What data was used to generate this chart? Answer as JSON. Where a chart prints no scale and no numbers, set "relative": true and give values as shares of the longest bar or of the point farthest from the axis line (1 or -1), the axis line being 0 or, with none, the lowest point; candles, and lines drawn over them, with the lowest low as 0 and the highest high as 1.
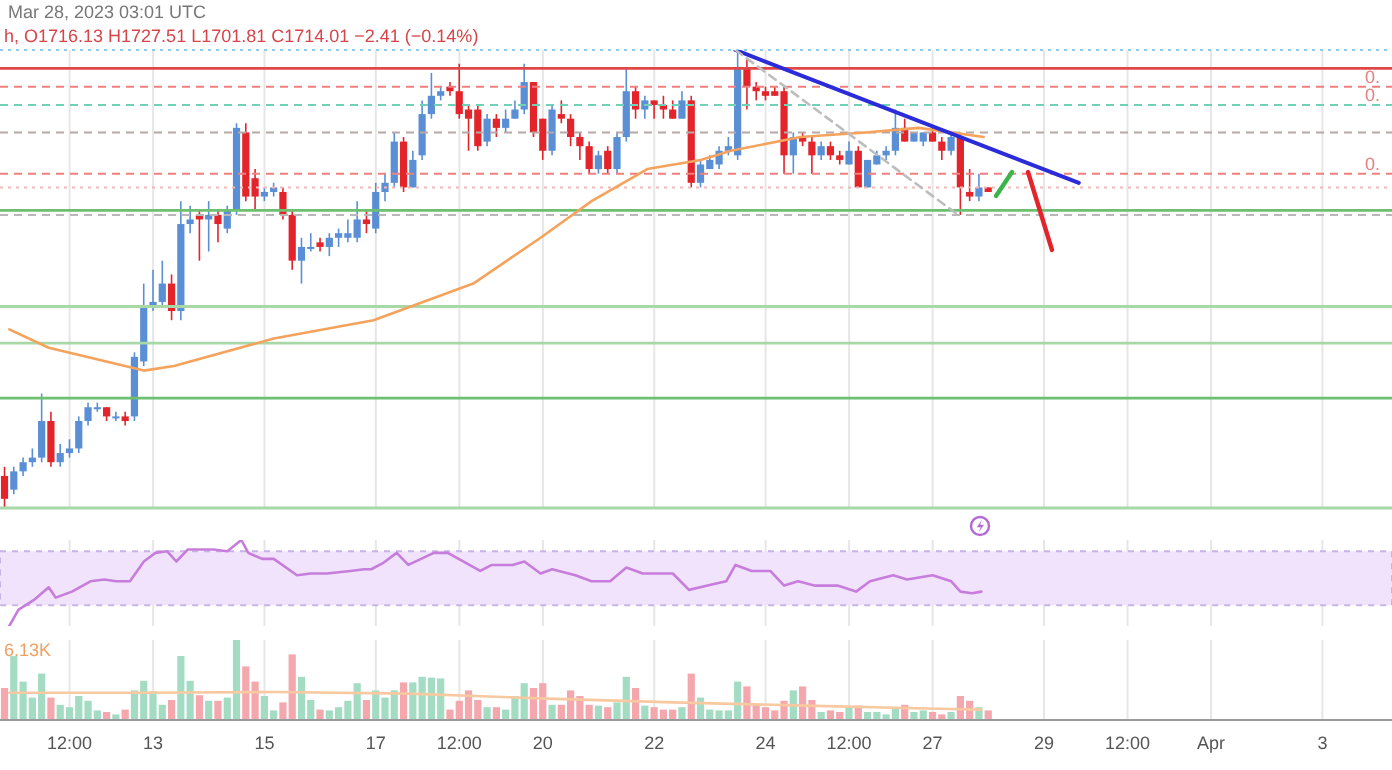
{
  "chart_data": [
    {
      "type": "candlestick",
      "title": "Mar 28, 2023 03:01 UTC",
      "subtitle": "h, O1716.13 H1727.51 L1701.81 C1714.01 −2.41 (−0.14%)",
      "relative": true,
      "marker": "none",
      "grid": "x",
      "tick_labels": false,
      "xlim": [
        "2023-03-10T06:00",
        "2023-04-04T06:00"
      ],
      "x": [
        "2023-03-10T08:00",
        "2023-03-10T12:00",
        "2023-03-10T16:00",
        "2023-03-10T20:00",
        "2023-03-11T00:00",
        "2023-03-11T04:00",
        "2023-03-11T08:00",
        "2023-03-11T12:00",
        "2023-03-11T16:00",
        "2023-03-11T20:00",
        "2023-03-12T00:00",
        "2023-03-12T04:00",
        "2023-03-12T08:00",
        "2023-03-12T12:00",
        "2023-03-12T16:00",
        "2023-03-12T20:00",
        "2023-03-13T00:00",
        "2023-03-13T04:00",
        "2023-03-13T08:00",
        "2023-03-13T12:00",
        "2023-03-13T16:00",
        "2023-03-13T20:00",
        "2023-03-14T00:00",
        "2023-03-14T04:00",
        "2023-03-14T08:00",
        "2023-03-14T12:00",
        "2023-03-14T16:00",
        "2023-03-14T20:00",
        "2023-03-15T00:00",
        "2023-03-15T04:00",
        "2023-03-15T08:00",
        "2023-03-15T12:00",
        "2023-03-15T16:00",
        "2023-03-15T20:00",
        "2023-03-16T00:00",
        "2023-03-16T04:00",
        "2023-03-16T08:00",
        "2023-03-16T12:00",
        "2023-03-16T16:00",
        "2023-03-16T20:00",
        "2023-03-17T00:00",
        "2023-03-17T04:00",
        "2023-03-17T08:00",
        "2023-03-17T12:00",
        "2023-03-17T16:00",
        "2023-03-17T20:00",
        "2023-03-18T00:00",
        "2023-03-18T04:00",
        "2023-03-18T08:00",
        "2023-03-18T12:00",
        "2023-03-18T16:00",
        "2023-03-18T20:00",
        "2023-03-19T00:00",
        "2023-03-19T04:00",
        "2023-03-19T08:00",
        "2023-03-19T12:00",
        "2023-03-19T16:00",
        "2023-03-19T20:00",
        "2023-03-20T00:00",
        "2023-03-20T04:00",
        "2023-03-20T08:00",
        "2023-03-20T12:00",
        "2023-03-20T16:00",
        "2023-03-20T20:00",
        "2023-03-21T00:00",
        "2023-03-21T04:00",
        "2023-03-21T08:00",
        "2023-03-21T12:00",
        "2023-03-21T16:00",
        "2023-03-21T20:00",
        "2023-03-22T00:00",
        "2023-03-22T04:00",
        "2023-03-22T08:00",
        "2023-03-22T12:00",
        "2023-03-22T16:00",
        "2023-03-22T20:00",
        "2023-03-23T00:00",
        "2023-03-23T04:00",
        "2023-03-23T08:00",
        "2023-03-23T12:00",
        "2023-03-23T16:00",
        "2023-03-23T20:00",
        "2023-03-24T00:00",
        "2023-03-24T04:00",
        "2023-03-24T08:00",
        "2023-03-24T12:00",
        "2023-03-24T16:00",
        "2023-03-24T20:00",
        "2023-03-25T00:00",
        "2023-03-25T04:00",
        "2023-03-25T08:00",
        "2023-03-25T12:00",
        "2023-03-25T16:00",
        "2023-03-25T20:00",
        "2023-03-26T00:00",
        "2023-03-26T04:00",
        "2023-03-26T08:00",
        "2023-03-26T12:00",
        "2023-03-26T16:00",
        "2023-03-26T20:00",
        "2023-03-27T00:00",
        "2023-03-27T04:00",
        "2023-03-27T08:00",
        "2023-03-27T12:00",
        "2023-03-27T16:00",
        "2023-03-27T20:00",
        "2023-03-28T00:00"
      ],
      "ohlc": [
        [
          0.07,
          0.09,
          0,
          0.02
        ],
        [
          0.04,
          0.09,
          0.03,
          0.08
        ],
        [
          0.08,
          0.11,
          0.07,
          0.1
        ],
        [
          0.1,
          0.13,
          0.09,
          0.11
        ],
        [
          0.11,
          0.25,
          0.1,
          0.19
        ],
        [
          0.19,
          0.21,
          0.09,
          0.1
        ],
        [
          0.1,
          0.14,
          0.09,
          0.12
        ],
        [
          0.12,
          0.15,
          0.11,
          0.13
        ],
        [
          0.13,
          0.2,
          0.12,
          0.19
        ],
        [
          0.19,
          0.23,
          0.18,
          0.22
        ],
        [
          0.22,
          0.23,
          0.21,
          0.22
        ],
        [
          0.22,
          0.22,
          0.19,
          0.2
        ],
        [
          0.2,
          0.21,
          0.19,
          0.2
        ],
        [
          0.2,
          0.21,
          0.18,
          0.19
        ],
        [
          0.2,
          0.34,
          0.19,
          0.33
        ],
        [
          0.32,
          0.49,
          0.31,
          0.44
        ],
        [
          0.44,
          0.52,
          0.43,
          0.45
        ],
        [
          0.45,
          0.54,
          0.44,
          0.49
        ],
        [
          0.49,
          0.51,
          0.41,
          0.43
        ],
        [
          0.43,
          0.67,
          0.41,
          0.62
        ],
        [
          0.62,
          0.66,
          0.6,
          0.63
        ],
        [
          0.64,
          0.65,
          0.54,
          0.63
        ],
        [
          0.63,
          0.67,
          0.56,
          0.64
        ],
        [
          0.64,
          0.65,
          0.58,
          0.62
        ],
        [
          0.61,
          0.66,
          0.6,
          0.65
        ],
        [
          0.65,
          0.84,
          0.64,
          0.83
        ],
        [
          0.82,
          0.84,
          0.67,
          0.68
        ],
        [
          0.72,
          0.74,
          0.65,
          0.68
        ],
        [
          0.68,
          0.7,
          0.67,
          0.69
        ],
        [
          0.69,
          0.71,
          0.68,
          0.7
        ],
        [
          0.69,
          0.7,
          0.63,
          0.64
        ],
        [
          0.64,
          0.65,
          0.52,
          0.54
        ],
        [
          0.54,
          0.59,
          0.49,
          0.57
        ],
        [
          0.57,
          0.6,
          0.56,
          0.57
        ],
        [
          0.58,
          0.59,
          0.56,
          0.57
        ],
        [
          0.57,
          0.6,
          0.55,
          0.59
        ],
        [
          0.59,
          0.61,
          0.57,
          0.6
        ],
        [
          0.59,
          0.63,
          0.58,
          0.6
        ],
        [
          0.59,
          0.67,
          0.58,
          0.63
        ],
        [
          0.63,
          0.65,
          0.6,
          0.62
        ],
        [
          0.61,
          0.71,
          0.6,
          0.69
        ],
        [
          0.69,
          0.73,
          0.67,
          0.71
        ],
        [
          0.71,
          0.82,
          0.7,
          0.8
        ],
        [
          0.8,
          0.81,
          0.69,
          0.7
        ],
        [
          0.7,
          0.78,
          0.7,
          0.76
        ],
        [
          0.77,
          0.89,
          0.76,
          0.86
        ],
        [
          0.86,
          0.95,
          0.85,
          0.9
        ],
        [
          0.9,
          0.92,
          0.89,
          0.91
        ],
        [
          0.92,
          0.93,
          0.9,
          0.91
        ],
        [
          0.91,
          0.97,
          0.85,
          0.86
        ],
        [
          0.87,
          0.88,
          0.78,
          0.85
        ],
        [
          0.87,
          0.88,
          0.78,
          0.79
        ],
        [
          0.8,
          0.86,
          0.79,
          0.85
        ],
        [
          0.85,
          0.86,
          0.81,
          0.83
        ],
        [
          0.83,
          0.87,
          0.82,
          0.85
        ],
        [
          0.85,
          0.89,
          0.85,
          0.87
        ],
        [
          0.87,
          0.97,
          0.86,
          0.93
        ],
        [
          0.93,
          0.93,
          0.81,
          0.82
        ],
        [
          0.85,
          0.85,
          0.76,
          0.78
        ],
        [
          0.78,
          0.88,
          0.77,
          0.87
        ],
        [
          0.86,
          0.89,
          0.84,
          0.85
        ],
        [
          0.85,
          0.86,
          0.79,
          0.81
        ],
        [
          0.81,
          0.82,
          0.76,
          0.79
        ],
        [
          0.79,
          0.8,
          0.73,
          0.74
        ],
        [
          0.74,
          0.78,
          0.73,
          0.77
        ],
        [
          0.78,
          0.79,
          0.73,
          0.74
        ],
        [
          0.74,
          0.82,
          0.73,
          0.81
        ],
        [
          0.81,
          0.96,
          0.8,
          0.91
        ],
        [
          0.91,
          0.92,
          0.85,
          0.87
        ],
        [
          0.87,
          0.9,
          0.85,
          0.89
        ],
        [
          0.89,
          0.89,
          0.85,
          0.88
        ],
        [
          0.88,
          0.9,
          0.85,
          0.87
        ],
        [
          0.87,
          0.89,
          0.85,
          0.85
        ],
        [
          0.85,
          0.91,
          0.85,
          0.89
        ],
        [
          0.89,
          0.9,
          0.7,
          0.71
        ],
        [
          0.71,
          0.76,
          0.7,
          0.75
        ],
        [
          0.74,
          0.77,
          0.74,
          0.76
        ],
        [
          0.75,
          0.79,
          0.74,
          0.78
        ],
        [
          0.78,
          0.81,
          0.77,
          0.79
        ],
        [
          0.77,
          1,
          0.76,
          0.96
        ],
        [
          0.96,
          0.98,
          0.87,
          0.92
        ],
        [
          0.92,
          0.93,
          0.89,
          0.91
        ],
        [
          0.91,
          0.92,
          0.89,
          0.9
        ],
        [
          0.91,
          0.92,
          0.9,
          0.9
        ],
        [
          0.91,
          0.92,
          0.73,
          0.77
        ],
        [
          0.77,
          0.82,
          0.73,
          0.81
        ],
        [
          0.81,
          0.82,
          0.79,
          0.8
        ],
        [
          0.8,
          0.81,
          0.73,
          0.77
        ],
        [
          0.77,
          0.8,
          0.76,
          0.79
        ],
        [
          0.79,
          0.8,
          0.76,
          0.77
        ],
        [
          0.77,
          0.78,
          0.75,
          0.76
        ],
        [
          0.75,
          0.8,
          0.75,
          0.78
        ],
        [
          0.78,
          0.79,
          0.7,
          0.7
        ],
        [
          0.7,
          0.76,
          0.7,
          0.76
        ],
        [
          0.75,
          0.78,
          0.75,
          0.77
        ],
        [
          0.77,
          0.79,
          0.76,
          0.78
        ],
        [
          0.78,
          0.87,
          0.77,
          0.83
        ],
        [
          0.83,
          0.85,
          0.8,
          0.8
        ],
        [
          0.8,
          0.82,
          0.8,
          0.82
        ],
        [
          0.8,
          0.82,
          0.79,
          0.82
        ],
        [
          0.82,
          0.83,
          0.8,
          0.8
        ],
        [
          0.8,
          0.81,
          0.76,
          0.78
        ],
        [
          0.78,
          0.82,
          0.77,
          0.81
        ],
        [
          0.81,
          0.82,
          0.64,
          0.7
        ],
        [
          0.69,
          0.74,
          0.67,
          0.68
        ],
        [
          0.68,
          0.73,
          0.67,
          0.7
        ],
        [
          0.7,
          0.7,
          0.69,
          0.69
        ]
      ],
      "colors": [
        "#e3242b",
        "#5a8fd6",
        "#5a8fd6",
        "#5a8fd6",
        "#5a8fd6",
        "#e3242b",
        "#5a8fd6",
        "#5a8fd6",
        "#5a8fd6",
        "#5a8fd6",
        "#5a8fd6",
        "#e3242b",
        "#5a8fd6",
        "#e3242b",
        "#5a8fd6",
        "#5a8fd6",
        "#5a8fd6",
        "#5a8fd6",
        "#e3242b",
        "#5a8fd6",
        "#5a8fd6",
        "#e3242b",
        "#5a8fd6",
        "#e3242b",
        "#5a8fd6",
        "#5a8fd6",
        "#e3242b",
        "#e3242b",
        "#5a8fd6",
        "#5a8fd6",
        "#e3242b",
        "#e3242b",
        "#5a8fd6",
        "#5a8fd6",
        "#e3242b",
        "#5a8fd6",
        "#5a8fd6",
        "#5a8fd6",
        "#5a8fd6",
        "#e3242b",
        "#5a8fd6",
        "#5a8fd6",
        "#5a8fd6",
        "#e3242b",
        "#5a8fd6",
        "#5a8fd6",
        "#5a8fd6",
        "#5a8fd6",
        "#e3242b",
        "#e3242b",
        "#e3242b",
        "#e3242b",
        "#5a8fd6",
        "#e3242b",
        "#5a8fd6",
        "#5a8fd6",
        "#5a8fd6",
        "#e3242b",
        "#e3242b",
        "#5a8fd6",
        "#e3242b",
        "#e3242b",
        "#e3242b",
        "#e3242b",
        "#5a8fd6",
        "#e3242b",
        "#5a8fd6",
        "#5a8fd6",
        "#e3242b",
        "#5a8fd6",
        "#e3242b",
        "#e3242b",
        "#e3242b",
        "#5a8fd6",
        "#e3242b",
        "#5a8fd6",
        "#5a8fd6",
        "#5a8fd6",
        "#5a8fd6",
        "#5a8fd6",
        "#e3242b",
        "#e3242b",
        "#e3242b",
        "#e3242b",
        "#e3242b",
        "#5a8fd6",
        "#e3242b",
        "#e3242b",
        "#5a8fd6",
        "#e3242b",
        "#e3242b",
        "#5a8fd6",
        "#e3242b",
        "#5a8fd6",
        "#5a8fd6",
        "#5a8fd6",
        "#5a8fd6",
        "#e3242b",
        "#5a8fd6",
        "#5a8fd6",
        "#e3242b",
        "#e3242b",
        "#5a8fd6",
        "#e3242b",
        "#e3242b",
        "#5a8fd6",
        "#e3242b"
      ],
      "series": [
        {
          "type": "line",
          "color": "#f5a35c",
          "x": [
            "2023-03-10T10:00",
            "2023-03-11T03:00",
            "2023-03-12T20:00",
            "2023-03-13T09:00",
            "2023-03-15T04:00",
            "2023-03-16T23:00",
            "2023-03-18T18:00",
            "2023-03-19T23:00",
            "2023-03-20T21:00",
            "2023-03-21T21:00",
            "2023-03-22T20:00",
            "2023-03-23T09:00",
            "2023-03-24T15:00",
            "2023-03-25T19:00",
            "2023-03-26T18:00",
            "2023-03-27T22:00"
          ],
          "values": [
            0.39,
            0.35,
            0.3,
            0.31,
            0.37,
            0.41,
            0.49,
            0.59,
            0.67,
            0.74,
            0.76,
            0.78,
            0.81,
            0.82,
            0.83,
            0.81
          ]
        },
        {
          "type": "line",
          "color": "#2b2bd9",
          "x": [
            "2023-03-23T11:00",
            "2023-03-29T15:00"
          ],
          "values": [
            1,
            0.71
          ]
        },
        {
          "type": "line",
          "color": "#bdbdbd",
          "line_style": "dashed",
          "x": [
            "2023-03-23T11:00",
            "2023-03-27T11:00"
          ],
          "values": [
            1,
            0.64
          ]
        }
      ],
      "ref_lines": [
        {
          "axis": "y",
          "value": 1,
          "color": "#90c8f0",
          "line_style": "dotted"
        },
        {
          "axis": "y",
          "value": 0.96,
          "color": "#e04848",
          "line_style": "solid"
        },
        {
          "axis": "y",
          "value": 0.92,
          "color": "#f08080",
          "line_style": "dashed"
        },
        {
          "axis": "y",
          "value": 0.88,
          "color": "#70d0b8",
          "line_style": "dashed"
        },
        {
          "axis": "y",
          "value": 0.82,
          "color": "#b8a8a8",
          "line_style": "dashed"
        },
        {
          "axis": "y",
          "value": 0.73,
          "color": "#f08080",
          "line_style": "dashed"
        },
        {
          "axis": "y",
          "value": 0.7,
          "color": "#f0b8b8",
          "line_style": "dotted"
        },
        {
          "axis": "y",
          "value": 0.65,
          "color": "#6cc070",
          "line_style": "solid"
        },
        {
          "axis": "y",
          "value": 0.64,
          "color": "#b8b8b8",
          "line_style": "dashed"
        },
        {
          "axis": "y",
          "value": 0.44,
          "color": "#a8d8a8",
          "line_style": "solid"
        },
        {
          "axis": "y",
          "value": 0.36,
          "color": "#a8d8a8",
          "line_style": "solid"
        },
        {
          "axis": "y",
          "value": 0.24,
          "color": "#6cc070",
          "line_style": "solid"
        },
        {
          "axis": "y",
          "value": 0,
          "color": "#a8d8a8",
          "line_style": "solid"
        }
      ],
      "annotations": [
        {
          "text": "0.",
          "x": "2023-04-04T06:00",
          "y": 0.92
        },
        {
          "text": "0.",
          "x": "2023-04-04T06:00",
          "y": 0.88
        },
        {
          "text": "0.",
          "x": "2023-04-04T06:00",
          "y": 0.73
        }
      ]
    },
    {
      "type": "line",
      "relative": true,
      "marker": "none",
      "grid": "x",
      "tick_labels": false,
      "xlim": [
        "2023-03-10T06:00",
        "2023-04-04T06:00"
      ],
      "series": [
        {
          "color": "#c77ddb",
          "x": [
            "2023-03-10T10:00",
            "2023-03-10T14:00",
            "2023-03-10T21:00",
            "2023-03-11T03:00",
            "2023-03-11T06:00",
            "2023-03-11T13:00",
            "2023-03-11T21:00",
            "2023-03-12T03:00",
            "2023-03-12T08:00",
            "2023-03-12T14:00",
            "2023-03-12T20:00",
            "2023-03-13T01:00",
            "2023-03-13T06:00",
            "2023-03-13T10:00",
            "2023-03-13T15:00",
            "2023-03-14T02:00",
            "2023-03-14T08:00",
            "2023-03-14T14:00",
            "2023-03-14T17:00",
            "2023-03-14T23:00",
            "2023-03-15T04:00",
            "2023-03-15T14:00",
            "2023-03-15T20:00",
            "2023-03-16T03:00",
            "2023-03-16T13:00",
            "2023-03-16T19:00",
            "2023-03-16T22:00",
            "2023-03-17T03:00",
            "2023-03-17T09:00",
            "2023-03-17T14:00",
            "2023-03-18T01:00",
            "2023-03-18T07:00",
            "2023-03-18T15:00",
            "2023-03-18T21:00",
            "2023-03-19T02:00",
            "2023-03-19T11:00",
            "2023-03-19T16:00",
            "2023-03-19T23:00",
            "2023-03-20T04:00",
            "2023-03-20T14:00",
            "2023-03-20T21:00",
            "2023-03-21T05:00",
            "2023-03-21T12:00",
            "2023-03-21T19:00",
            "2023-03-22T08:00",
            "2023-03-22T15:00",
            "2023-03-22T23:00",
            "2023-03-23T07:00",
            "2023-03-23T11:00",
            "2023-03-23T18:00",
            "2023-03-24T02:00",
            "2023-03-24T08:00",
            "2023-03-24T14:00",
            "2023-03-24T21:00",
            "2023-03-25T07:00",
            "2023-03-25T15:00",
            "2023-03-25T21:00",
            "2023-03-26T07:00",
            "2023-03-26T13:00",
            "2023-03-27T00:00",
            "2023-03-27T08:00",
            "2023-03-27T12:00",
            "2023-03-27T17:00",
            "2023-03-27T21:00"
          ],
          "values": [
            0,
            0.19,
            0.31,
            0.45,
            0.33,
            0.4,
            0.52,
            0.54,
            0.52,
            0.52,
            0.75,
            0.85,
            0.87,
            0.75,
            0.89,
            0.89,
            0.87,
            1,
            0.85,
            0.78,
            0.78,
            0.59,
            0.61,
            0.61,
            0.64,
            0.66,
            0.66,
            0.73,
            0.85,
            0.71,
            0.85,
            0.85,
            0.73,
            0.64,
            0.71,
            0.71,
            0.75,
            0.61,
            0.66,
            0.59,
            0.52,
            0.52,
            0.68,
            0.61,
            0.61,
            0.42,
            0.47,
            0.52,
            0.71,
            0.64,
            0.64,
            0.47,
            0.52,
            0.47,
            0.47,
            0.4,
            0.52,
            0.59,
            0.54,
            0.59,
            0.52,
            0.4,
            0.38,
            0.4
          ]
        }
      ],
      "bands": [
        {
          "axis": "y",
          "from": 0.24,
          "to": 0.87,
          "color": "#f1e3fc"
        }
      ]
    },
    {
      "type": "bar",
      "relative": true,
      "grid": "x",
      "tick_labels": "x",
      "marker": "none",
      "annotations": [
        "6.13K"
      ],
      "xlim": [
        "2023-03-10T06:00",
        "2023-04-04T06:00"
      ],
      "xticks": [
        {
          "value": "2023-03-11T12:00",
          "label": "12:00"
        },
        {
          "value": "2023-03-13",
          "label": "13"
        },
        {
          "value": "2023-03-15",
          "label": "15"
        },
        {
          "value": "2023-03-17",
          "label": "17"
        },
        {
          "value": "2023-03-18T12:00",
          "label": "12:00"
        },
        {
          "value": "2023-03-20",
          "label": "20"
        },
        {
          "value": "2023-03-22",
          "label": "22"
        },
        {
          "value": "2023-03-24",
          "label": "24"
        },
        {
          "value": "2023-03-25T12:00",
          "label": "12:00"
        },
        {
          "value": "2023-03-27",
          "label": "27"
        },
        {
          "value": "2023-03-29",
          "label": "29"
        },
        {
          "value": "2023-03-30T12:00",
          "label": "12:00"
        },
        {
          "value": "2023-04-01",
          "label": "Apr"
        },
        {
          "value": "2023-04-03",
          "label": "3"
        }
      ],
      "x": [
        "2023-03-10T08:00",
        "2023-03-10T12:00",
        "2023-03-10T16:00",
        "2023-03-10T20:00",
        "2023-03-11T00:00",
        "2023-03-11T04:00",
        "2023-03-11T08:00",
        "2023-03-11T12:00",
        "2023-03-11T16:00",
        "2023-03-11T20:00",
        "2023-03-12T00:00",
        "2023-03-12T04:00",
        "2023-03-12T08:00",
        "2023-03-12T12:00",
        "2023-03-12T16:00",
        "2023-03-12T20:00",
        "2023-03-13T00:00",
        "2023-03-13T04:00",
        "2023-03-13T08:00",
        "2023-03-13T12:00",
        "2023-03-13T16:00",
        "2023-03-13T20:00",
        "2023-03-14T00:00",
        "2023-03-14T04:00",
        "2023-03-14T08:00",
        "2023-03-14T12:00",
        "2023-03-14T16:00",
        "2023-03-14T20:00",
        "2023-03-15T00:00",
        "2023-03-15T04:00",
        "2023-03-15T08:00",
        "2023-03-15T12:00",
        "2023-03-15T16:00",
        "2023-03-15T20:00",
        "2023-03-16T00:00",
        "2023-03-16T04:00",
        "2023-03-16T08:00",
        "2023-03-16T12:00",
        "2023-03-16T16:00",
        "2023-03-16T20:00",
        "2023-03-17T00:00",
        "2023-03-17T04:00",
        "2023-03-17T08:00",
        "2023-03-17T12:00",
        "2023-03-17T16:00",
        "2023-03-17T20:00",
        "2023-03-18T00:00",
        "2023-03-18T04:00",
        "2023-03-18T08:00",
        "2023-03-18T12:00",
        "2023-03-18T16:00",
        "2023-03-18T20:00",
        "2023-03-19T00:00",
        "2023-03-19T04:00",
        "2023-03-19T08:00",
        "2023-03-19T12:00",
        "2023-03-19T16:00",
        "2023-03-19T20:00",
        "2023-03-20T00:00",
        "2023-03-20T04:00",
        "2023-03-20T08:00",
        "2023-03-20T12:00",
        "2023-03-20T16:00",
        "2023-03-20T20:00",
        "2023-03-21T00:00",
        "2023-03-21T04:00",
        "2023-03-21T08:00",
        "2023-03-21T12:00",
        "2023-03-21T16:00",
        "2023-03-21T20:00",
        "2023-03-22T00:00",
        "2023-03-22T04:00",
        "2023-03-22T08:00",
        "2023-03-22T12:00",
        "2023-03-22T16:00",
        "2023-03-22T20:00",
        "2023-03-23T00:00",
        "2023-03-23T04:00",
        "2023-03-23T08:00",
        "2023-03-23T12:00",
        "2023-03-23T16:00",
        "2023-03-23T20:00",
        "2023-03-24T00:00",
        "2023-03-24T04:00",
        "2023-03-24T08:00",
        "2023-03-24T12:00",
        "2023-03-24T16:00",
        "2023-03-24T20:00",
        "2023-03-25T00:00",
        "2023-03-25T04:00",
        "2023-03-25T08:00",
        "2023-03-25T12:00",
        "2023-03-25T16:00",
        "2023-03-25T20:00",
        "2023-03-26T00:00",
        "2023-03-26T04:00",
        "2023-03-26T08:00",
        "2023-03-26T12:00",
        "2023-03-26T16:00",
        "2023-03-26T20:00",
        "2023-03-27T00:00",
        "2023-03-27T04:00",
        "2023-03-27T08:00",
        "2023-03-27T12:00",
        "2023-03-27T16:00",
        "2023-03-27T20:00",
        "2023-03-28T00:00"
      ],
      "series": [
        {
          "type": "bar",
          "values": [
            0.4,
            0.8,
            0.48,
            0.28,
            0.58,
            0.28,
            0.19,
            0.16,
            0.3,
            0.24,
            0.12,
            0.1,
            0.07,
            0.13,
            0.37,
            0.49,
            0.36,
            0.19,
            0.25,
            0.8,
            0.49,
            0.31,
            0.24,
            0.24,
            0.28,
            1,
            0.67,
            0.48,
            0.3,
            0.12,
            0.22,
            0.82,
            0.54,
            0.25,
            0.13,
            0.12,
            0.16,
            0.24,
            0.46,
            0.25,
            0.37,
            0.28,
            0.37,
            0.47,
            0.47,
            0.54,
            0.53,
            0.52,
            0.13,
            0.24,
            0.37,
            0.25,
            0.16,
            0.16,
            0.13,
            0.3,
            0.46,
            0.4,
            0.46,
            0.19,
            0.19,
            0.37,
            0.3,
            0.19,
            0.18,
            0.16,
            0.22,
            0.54,
            0.4,
            0.18,
            0.16,
            0.13,
            0.13,
            0.16,
            0.58,
            0.28,
            0.13,
            0.12,
            0.12,
            0.48,
            0.42,
            0.19,
            0.16,
            0.12,
            0.24,
            0.37,
            0.42,
            0.25,
            0.1,
            0.12,
            0.1,
            0.16,
            0.18,
            0.1,
            0.1,
            0.07,
            0.16,
            0.19,
            0.1,
            0.12,
            0.1,
            0.07,
            0.1,
            0.3,
            0.24,
            0.16,
            0.12
          ],
          "colors": [
            "#f4a7ad",
            "#a3dcc3",
            "#a3dcc3",
            "#a3dcc3",
            "#a3dcc3",
            "#f4a7ad",
            "#a3dcc3",
            "#a3dcc3",
            "#a3dcc3",
            "#a3dcc3",
            "#a3dcc3",
            "#f4a7ad",
            "#a3dcc3",
            "#f4a7ad",
            "#a3dcc3",
            "#a3dcc3",
            "#a3dcc3",
            "#a3dcc3",
            "#f4a7ad",
            "#a3dcc3",
            "#a3dcc3",
            "#f4a7ad",
            "#a3dcc3",
            "#f4a7ad",
            "#a3dcc3",
            "#a3dcc3",
            "#f4a7ad",
            "#f4a7ad",
            "#a3dcc3",
            "#a3dcc3",
            "#f4a7ad",
            "#f4a7ad",
            "#a3dcc3",
            "#a3dcc3",
            "#f4a7ad",
            "#a3dcc3",
            "#a3dcc3",
            "#a3dcc3",
            "#a3dcc3",
            "#f4a7ad",
            "#a3dcc3",
            "#a3dcc3",
            "#a3dcc3",
            "#f4a7ad",
            "#a3dcc3",
            "#a3dcc3",
            "#a3dcc3",
            "#a3dcc3",
            "#f4a7ad",
            "#f4a7ad",
            "#f4a7ad",
            "#f4a7ad",
            "#a3dcc3",
            "#f4a7ad",
            "#a3dcc3",
            "#a3dcc3",
            "#a3dcc3",
            "#f4a7ad",
            "#f4a7ad",
            "#a3dcc3",
            "#f4a7ad",
            "#f4a7ad",
            "#f4a7ad",
            "#f4a7ad",
            "#a3dcc3",
            "#f4a7ad",
            "#a3dcc3",
            "#a3dcc3",
            "#f4a7ad",
            "#a3dcc3",
            "#f4a7ad",
            "#f4a7ad",
            "#f4a7ad",
            "#a3dcc3",
            "#f4a7ad",
            "#a3dcc3",
            "#a3dcc3",
            "#a3dcc3",
            "#a3dcc3",
            "#a3dcc3",
            "#f4a7ad",
            "#f4a7ad",
            "#f4a7ad",
            "#f4a7ad",
            "#f4a7ad",
            "#a3dcc3",
            "#f4a7ad",
            "#f4a7ad",
            "#a3dcc3",
            "#f4a7ad",
            "#f4a7ad",
            "#a3dcc3",
            "#f4a7ad",
            "#a3dcc3",
            "#a3dcc3",
            "#a3dcc3",
            "#a3dcc3",
            "#f4a7ad",
            "#a3dcc3",
            "#a3dcc3",
            "#f4a7ad",
            "#f4a7ad",
            "#a3dcc3",
            "#f4a7ad",
            "#f4a7ad",
            "#a3dcc3",
            "#f4a7ad"
          ]
        },
        {
          "type": "line",
          "color": "#f8c9a0",
          "x": [
            "2023-03-10T10:00",
            "2023-03-12T19:00",
            "2023-03-15T04:00",
            "2023-03-17T14:00",
            "2023-03-19T23:00",
            "2023-03-22T08:00",
            "2023-03-24T17:00",
            "2023-03-27T02:00",
            "2023-03-27T21:00"
          ],
          "values": [
            0.34,
            0.34,
            0.35,
            0.33,
            0.27,
            0.22,
            0.18,
            0.14,
            0.13
          ]
        }
      ]
    }
  ]
}
